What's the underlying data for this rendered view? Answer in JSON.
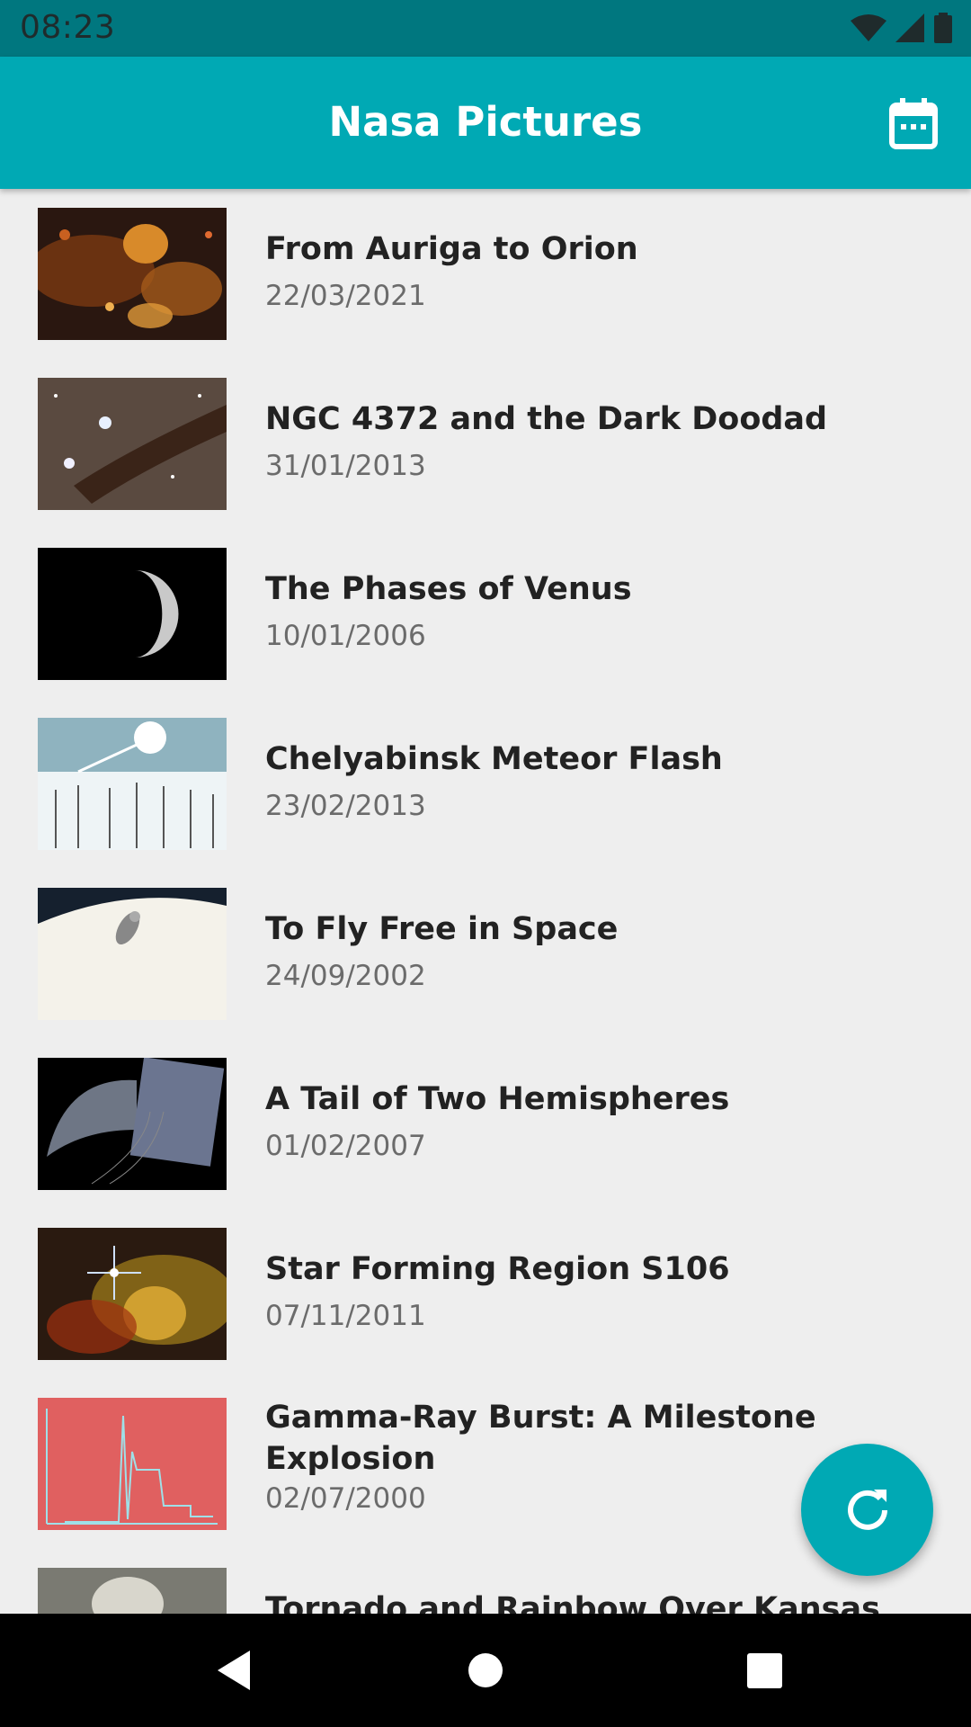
{
  "status_bar": {
    "time": "08:23"
  },
  "app_bar": {
    "title": "Nasa Pictures",
    "action_icon": "calendar-icon"
  },
  "items": [
    {
      "title": "From Auriga to Orion",
      "date": "22/03/2021"
    },
    {
      "title": "NGC 4372 and the Dark Doodad",
      "date": "31/01/2013"
    },
    {
      "title": "The Phases of Venus",
      "date": "10/01/2006"
    },
    {
      "title": "Chelyabinsk Meteor Flash",
      "date": "23/02/2013"
    },
    {
      "title": "To Fly Free in Space",
      "date": "24/09/2002"
    },
    {
      "title": "A Tail of Two Hemispheres",
      "date": "01/02/2007"
    },
    {
      "title": "Star Forming Region S106",
      "date": "07/11/2011"
    },
    {
      "title": "Gamma-Ray Burst: A Milestone Explosion",
      "date": "02/07/2000"
    },
    {
      "title": "Tornado and Rainbow Over Kansas",
      "date": ""
    }
  ],
  "fab": {
    "icon": "refresh-icon"
  },
  "nav_bar": {
    "back_icon": "back-icon",
    "home_icon": "home-icon",
    "recents_icon": "recents-icon"
  },
  "colors": {
    "primary": "#00a9b4",
    "primary_dark": "#00777f",
    "background": "#eeeeee"
  }
}
